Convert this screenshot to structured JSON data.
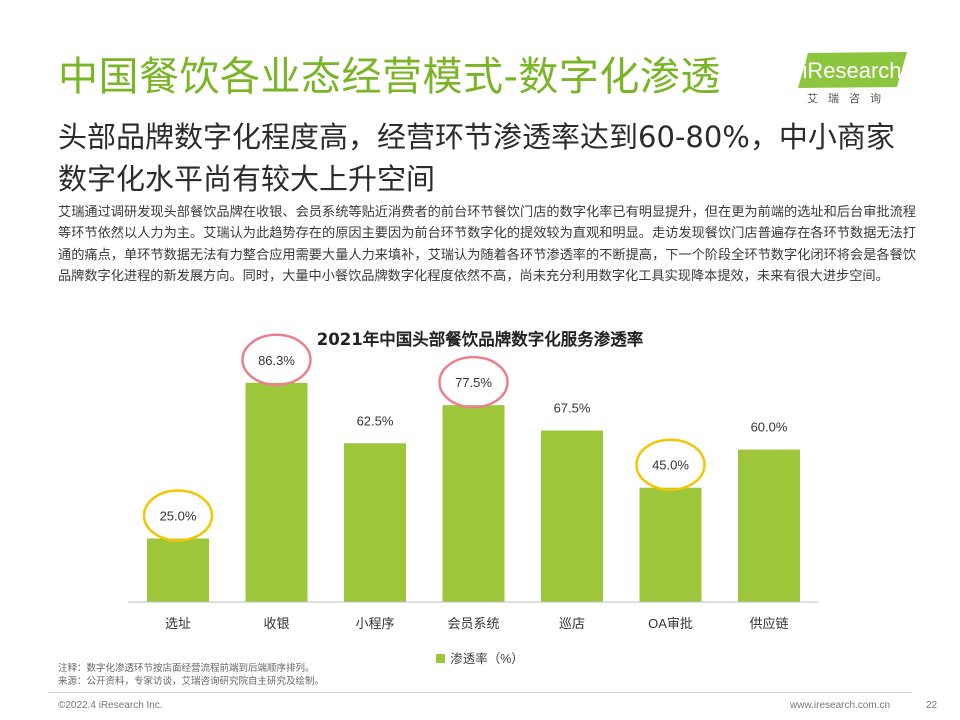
{
  "header": {
    "title": "中国餐饮各业态经营模式-数字化渗透",
    "logo_text": "iResearch",
    "logo_sub": "艾瑞咨询",
    "logo_color": "#8cc63f"
  },
  "subtitle": "头部品牌数字化程度高，经营环节渗透率达到60-80%，中小商家数字化水平尚有较大上升空间",
  "body_text": "艾瑞通过调研发现头部餐饮品牌在收银、会员系统等贴近消费者的前台环节餐饮门店的数字化率已有明显提升，但在更为前端的选址和后台审批流程等环节依然以人力为主。艾瑞认为此趋势存在的原因主要因为前台环节数字化的提效较为直观和明显。走访发现餐饮门店普遍存在各环节数据无法打通的痛点，单环节数据无法有力整合应用需要大量人力来填补，艾瑞认为随着各环节渗透率的不断提高，下一个阶段全环节数字化闭环将会是各餐饮品牌数字化进程的新发展方向。同时，大量中小餐饮品牌数字化程度依然不高，尚未充分利用数字化工具实现降本提效，未来有很大进步空间。",
  "chart_data": {
    "type": "bar",
    "title": "2021年中国头部餐饮品牌数字化服务渗透率",
    "categories": [
      "选址",
      "收银",
      "小程序",
      "会员系统",
      "巡店",
      "OA审批",
      "供应链"
    ],
    "series": [
      {
        "name": "渗透率（%）",
        "values": [
          25.0,
          86.3,
          62.5,
          77.5,
          67.5,
          45.0,
          60.0
        ],
        "labels": [
          "25.0%",
          "86.3%",
          "62.5%",
          "77.5%",
          "67.5%",
          "45.0%",
          "60.0%"
        ]
      }
    ],
    "ylim": [
      0,
      100
    ],
    "grid": false,
    "legend_position": "bottom",
    "bar_color": "#9ec63a",
    "highlight_circles": [
      {
        "category": "选址",
        "color": "#f2c600"
      },
      {
        "category": "收银",
        "color": "#e8808f"
      },
      {
        "category": "会员系统",
        "color": "#e8808f"
      },
      {
        "category": "OA审批",
        "color": "#f2c600"
      }
    ]
  },
  "notes": {
    "note": "注释：数字化渗透环节按店面经营流程前端到后端顺序排列。",
    "source": "来源：公开资料，专家访谈，艾瑞咨询研究院自主研究及绘制。"
  },
  "footer": {
    "copyright": "©2022.4 iResearch Inc.",
    "website": "www.iresearch.com.cn",
    "page": "22"
  }
}
